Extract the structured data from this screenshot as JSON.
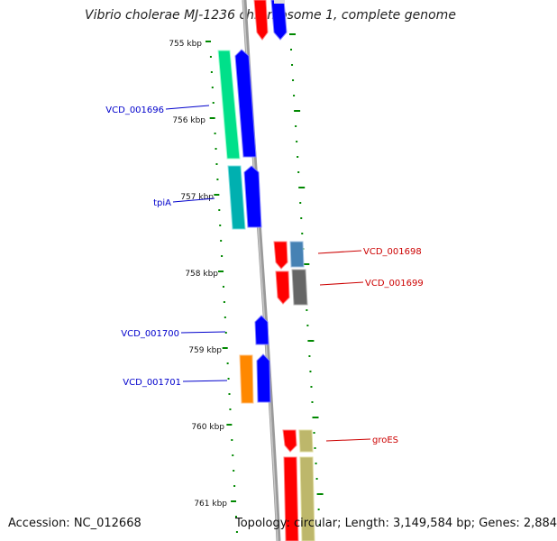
{
  "title": "Vibrio cholerae MJ-1236 chromosome 1, complete genome",
  "footer": {
    "accession": "Accession: NC_012668",
    "topology": "Topology: circular; Length: 3,149,584 bp; Genes: 2,884"
  },
  "tick_labels": [
    "755 kbp",
    "756 kbp",
    "757 kbp",
    "758 kbp",
    "759 kbp",
    "760 kbp",
    "761 kbp"
  ],
  "colors": {
    "forward_label": "#0000cc",
    "reverse_label": "#cc0000",
    "tick": "#008800",
    "backbone": "#999999",
    "forward_gene": "#0000ff",
    "reverse_gene": "#ff0000",
    "tpiA_cog": "#00b0b0",
    "VCD_001696_cog": "#00e08a",
    "VCD_001698_cog": "#4682b4",
    "VCD_001699_cog": "#666666",
    "VCD_001701_cog": "#ff8800",
    "groES_cog": "#bdb76b"
  },
  "genes": [
    {
      "name": "VCD_001696",
      "strand": "forward"
    },
    {
      "name": "tpiA",
      "strand": "forward"
    },
    {
      "name": "VCD_001698",
      "strand": "reverse"
    },
    {
      "name": "VCD_001699",
      "strand": "reverse"
    },
    {
      "name": "VCD_001700",
      "strand": "forward"
    },
    {
      "name": "VCD_001701",
      "strand": "forward"
    },
    {
      "name": "groES",
      "strand": "reverse"
    }
  ]
}
